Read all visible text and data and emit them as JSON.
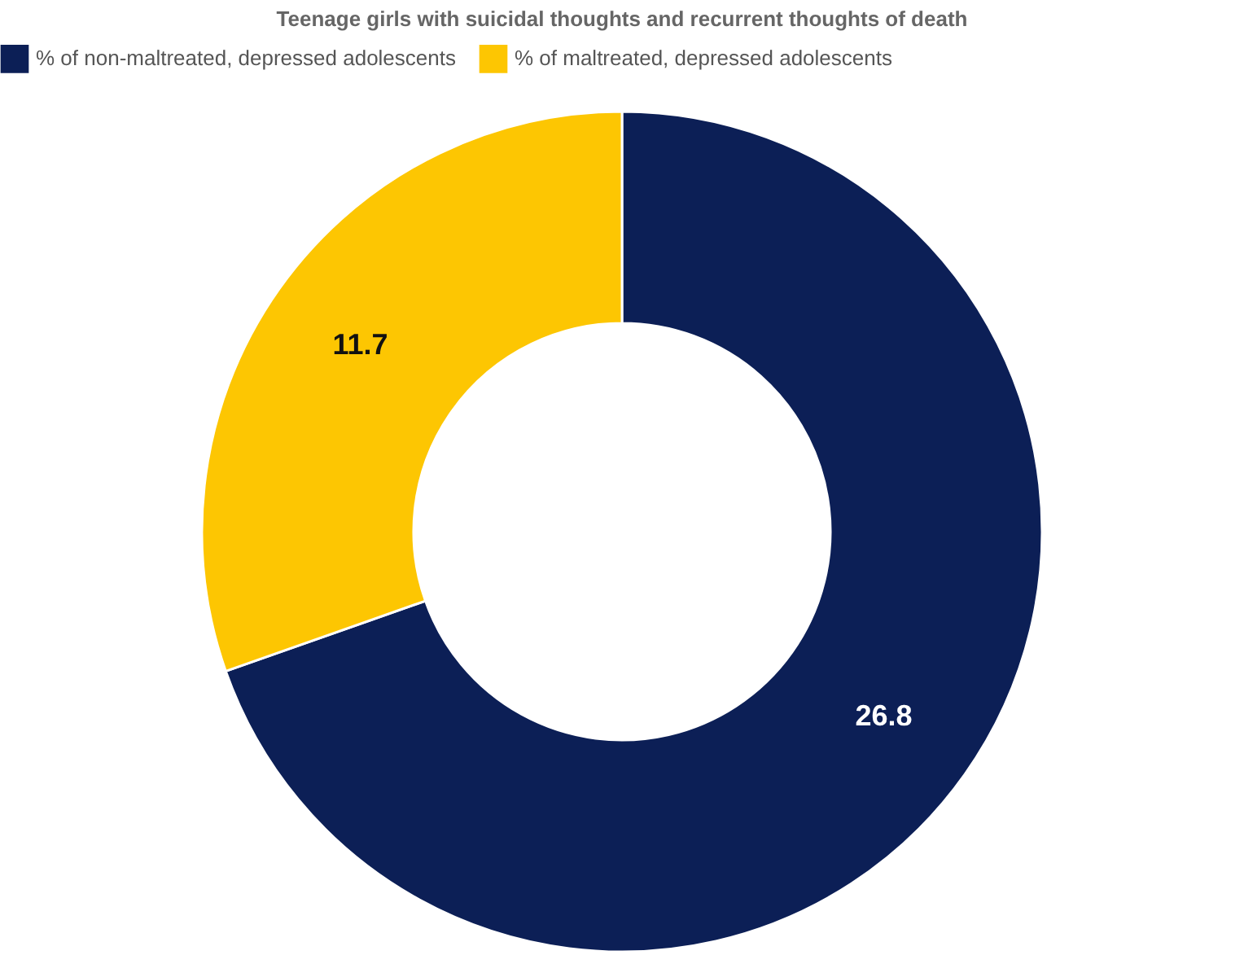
{
  "chart_data": {
    "type": "donut",
    "title": "Teenage girls with suicidal thoughts and recurrent thoughts of death",
    "categories": [
      "% of non-maltreated, depressed adolescents",
      "% of maltreated, depressed adolescents"
    ],
    "values": [
      26.8,
      11.7
    ],
    "colors": [
      "#0c1f56",
      "#fdc602"
    ],
    "data_labels": true,
    "legend": "top"
  }
}
